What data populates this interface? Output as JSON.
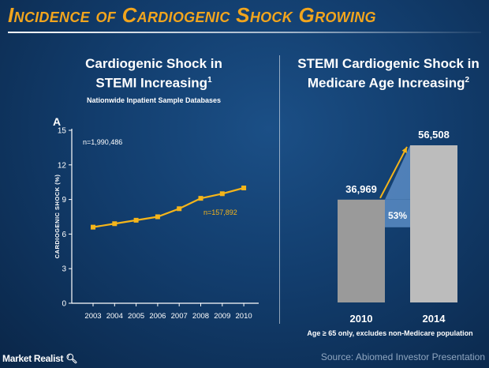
{
  "slide": {
    "title": "Incidence of Cardiogenic Shock Growing",
    "source": "Source: Abiomed Investor Presentation",
    "logo_text": "Market Realist",
    "colors": {
      "title": "#f2a51d",
      "line": "#f5b51a",
      "bar_2010": "#9a9a9a",
      "bar_2014": "#bcbcbc",
      "growth": "#5b8cc4"
    }
  },
  "left_panel": {
    "heading_line1": "Cardiogenic Shock in",
    "heading_line2": "STEMI Increasing",
    "heading_footnote": "1",
    "subheading": "Nationwide Inpatient Sample Databases",
    "panel_letter": "A"
  },
  "right_panel": {
    "heading_line1": "STEMI Cardiogenic Shock in",
    "heading_line2": "Medicare Age Increasing",
    "heading_footnote": "2",
    "footnote": "Age ≥ 65 only, excludes non-Medicare population"
  },
  "chart_data": [
    {
      "type": "line",
      "ylabel": "Cardiogenic Shock (%)",
      "x": [
        "2003",
        "2004",
        "2005",
        "2006",
        "2007",
        "2008",
        "2009",
        "2010"
      ],
      "series": [
        {
          "values": [
            6.6,
            6.9,
            7.2,
            7.5,
            8.2,
            9.1,
            9.5,
            10.0
          ]
        }
      ],
      "ylim": [
        0,
        15
      ],
      "yticks": [
        "0",
        "3",
        "6",
        "9",
        "12",
        "15"
      ],
      "grid": false,
      "annotations": [
        "n=1,990,486",
        "n=157,892"
      ]
    },
    {
      "type": "bar",
      "categories": [
        "2010",
        "2014"
      ],
      "values": [
        36969,
        56508
      ],
      "value_labels": [
        "36,969",
        "56,508"
      ],
      "growth_label": "53%"
    }
  ]
}
